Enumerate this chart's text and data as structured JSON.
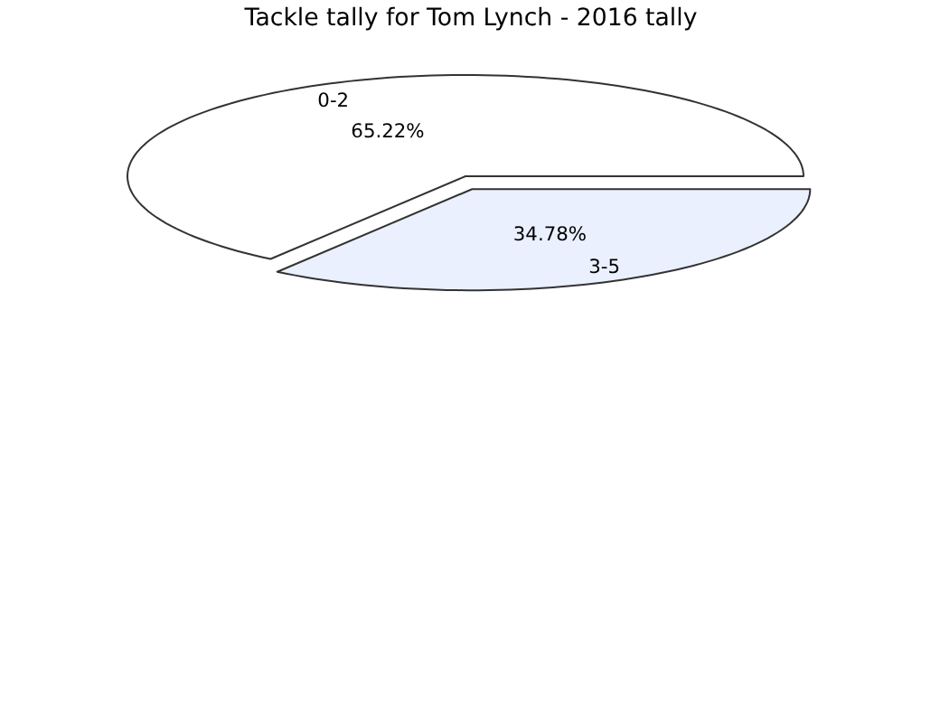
{
  "chart_data": {
    "type": "pie",
    "title": "Tackle tally for Tom Lynch - 2016 tally",
    "categories": [
      "0-2",
      "3-5"
    ],
    "values": [
      65.22,
      34.78
    ],
    "value_labels": [
      "65.22%",
      "34.78%"
    ],
    "colors": [
      "#ffffff",
      "#eaf0fd"
    ]
  }
}
